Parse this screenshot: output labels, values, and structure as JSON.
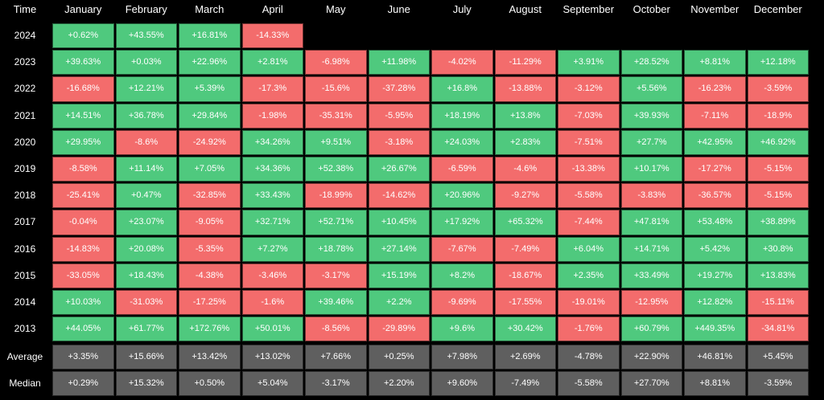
{
  "corner_label": "Time",
  "months": [
    "January",
    "February",
    "March",
    "April",
    "May",
    "June",
    "July",
    "August",
    "September",
    "October",
    "November",
    "December"
  ],
  "colors": {
    "positive": "#4fc97e",
    "negative": "#f36c6c",
    "summary": "#5f5f5f",
    "background": "#000000",
    "text": "#ffffff"
  },
  "chart_data": {
    "type": "table",
    "columns": [
      "January",
      "February",
      "March",
      "April",
      "May",
      "June",
      "July",
      "August",
      "September",
      "October",
      "November",
      "December"
    ],
    "rows": [
      {
        "label": "2024",
        "values": [
          "+0.62%",
          "+43.55%",
          "+16.81%",
          "-14.33%",
          null,
          null,
          null,
          null,
          null,
          null,
          null,
          null
        ]
      },
      {
        "label": "2023",
        "values": [
          "+39.63%",
          "+0.03%",
          "+22.96%",
          "+2.81%",
          "-6.98%",
          "+11.98%",
          "-4.02%",
          "-11.29%",
          "+3.91%",
          "+28.52%",
          "+8.81%",
          "+12.18%"
        ]
      },
      {
        "label": "2022",
        "values": [
          "-16.68%",
          "+12.21%",
          "+5.39%",
          "-17.3%",
          "-15.6%",
          "-37.28%",
          "+16.8%",
          "-13.88%",
          "-3.12%",
          "+5.56%",
          "-16.23%",
          "-3.59%"
        ]
      },
      {
        "label": "2021",
        "values": [
          "+14.51%",
          "+36.78%",
          "+29.84%",
          "-1.98%",
          "-35.31%",
          "-5.95%",
          "+18.19%",
          "+13.8%",
          "-7.03%",
          "+39.93%",
          "-7.11%",
          "-18.9%"
        ]
      },
      {
        "label": "2020",
        "values": [
          "+29.95%",
          "-8.6%",
          "-24.92%",
          "+34.26%",
          "+9.51%",
          "-3.18%",
          "+24.03%",
          "+2.83%",
          "-7.51%",
          "+27.7%",
          "+42.95%",
          "+46.92%"
        ]
      },
      {
        "label": "2019",
        "values": [
          "-8.58%",
          "+11.14%",
          "+7.05%",
          "+34.36%",
          "+52.38%",
          "+26.67%",
          "-6.59%",
          "-4.6%",
          "-13.38%",
          "+10.17%",
          "-17.27%",
          "-5.15%"
        ]
      },
      {
        "label": "2018",
        "values": [
          "-25.41%",
          "+0.47%",
          "-32.85%",
          "+33.43%",
          "-18.99%",
          "-14.62%",
          "+20.96%",
          "-9.27%",
          "-5.58%",
          "-3.83%",
          "-36.57%",
          "-5.15%"
        ]
      },
      {
        "label": "2017",
        "values": [
          "-0.04%",
          "+23.07%",
          "-9.05%",
          "+32.71%",
          "+52.71%",
          "+10.45%",
          "+17.92%",
          "+65.32%",
          "-7.44%",
          "+47.81%",
          "+53.48%",
          "+38.89%"
        ]
      },
      {
        "label": "2016",
        "values": [
          "-14.83%",
          "+20.08%",
          "-5.35%",
          "+7.27%",
          "+18.78%",
          "+27.14%",
          "-7.67%",
          "-7.49%",
          "+6.04%",
          "+14.71%",
          "+5.42%",
          "+30.8%"
        ]
      },
      {
        "label": "2015",
        "values": [
          "-33.05%",
          "+18.43%",
          "-4.38%",
          "-3.46%",
          "-3.17%",
          "+15.19%",
          "+8.2%",
          "-18.67%",
          "+2.35%",
          "+33.49%",
          "+19.27%",
          "+13.83%"
        ]
      },
      {
        "label": "2014",
        "values": [
          "+10.03%",
          "-31.03%",
          "-17.25%",
          "-1.6%",
          "+39.46%",
          "+2.2%",
          "-9.69%",
          "-17.55%",
          "-19.01%",
          "-12.95%",
          "+12.82%",
          "-15.11%"
        ]
      },
      {
        "label": "2013",
        "values": [
          "+44.05%",
          "+61.77%",
          "+172.76%",
          "+50.01%",
          "-8.56%",
          "-29.89%",
          "+9.6%",
          "+30.42%",
          "-1.76%",
          "+60.79%",
          "+449.35%",
          "-34.81%"
        ]
      }
    ],
    "summary_rows": [
      {
        "label": "Average",
        "values": [
          "+3.35%",
          "+15.66%",
          "+13.42%",
          "+13.02%",
          "+7.66%",
          "+0.25%",
          "+7.98%",
          "+2.69%",
          "-4.78%",
          "+22.90%",
          "+46.81%",
          "+5.45%"
        ]
      },
      {
        "label": "Median",
        "values": [
          "+0.29%",
          "+15.32%",
          "+0.50%",
          "+5.04%",
          "-3.17%",
          "+2.20%",
          "+9.60%",
          "-7.49%",
          "-5.58%",
          "+27.70%",
          "+8.81%",
          "-3.59%"
        ]
      }
    ]
  }
}
